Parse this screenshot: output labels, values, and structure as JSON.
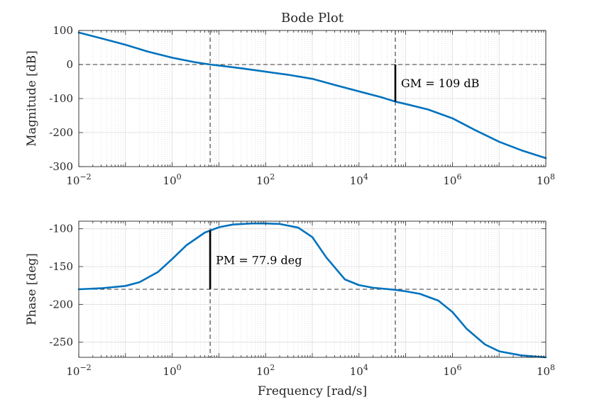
{
  "chart_data": {
    "type": "line",
    "title": "Bode Plot",
    "xlabel": "Frequency [rad/s]",
    "x_scale": "log",
    "xlim": [
      0.01,
      100000000
    ],
    "x_ticks": [
      {
        "value": 0.01,
        "base": "10",
        "exp": "−2"
      },
      {
        "value": 1,
        "base": "10",
        "exp": "0"
      },
      {
        "value": 100,
        "base": "10",
        "exp": "2"
      },
      {
        "value": 10000,
        "base": "10",
        "exp": "4"
      },
      {
        "value": 1000000,
        "base": "10",
        "exp": "6"
      },
      {
        "value": 100000000,
        "base": "10",
        "exp": "8"
      }
    ],
    "grid": true,
    "line_color": "#0072BD",
    "panels": [
      {
        "name": "magnitude",
        "ylabel": "Magnitude [dB]",
        "ylim": [
          -300,
          100
        ],
        "y_ticks": [
          {
            "value": 100,
            "label": "100"
          },
          {
            "value": 0,
            "label": "0"
          },
          {
            "value": -100,
            "label": "-100"
          },
          {
            "value": -200,
            "label": "-200"
          },
          {
            "value": -300,
            "label": "-300"
          }
        ],
        "series": [
          {
            "x": [
              0.01,
              0.03,
              0.1,
              0.3,
              1,
              3,
              6.5,
              10,
              30,
              100,
              300,
              1000,
              3000,
              10000,
              30000,
              60000,
              100000,
              300000,
              1000000,
              3000000,
              10000000,
              30000000,
              100000000
            ],
            "y": [
              94,
              77,
              58,
              38,
              20,
              7,
              0,
              -3,
              -11,
              -21,
              -30,
              -42,
              -60,
              -79,
              -96,
              -109,
              -116,
              -132,
              -158,
              -192,
              -227,
              -252,
              -275
            ]
          }
        ],
        "reference_lines": [
          {
            "axis": "y",
            "value": 0
          }
        ],
        "annotation": {
          "text": "GM = 109 dB",
          "x": 60000,
          "y_from": 0,
          "y_to": -109
        }
      },
      {
        "name": "phase",
        "ylabel": "Phase [deg]",
        "ylim": [
          -270,
          -90
        ],
        "y_ticks": [
          {
            "value": -100,
            "label": "-100"
          },
          {
            "value": -150,
            "label": "-150"
          },
          {
            "value": -200,
            "label": "-200"
          },
          {
            "value": -250,
            "label": "-250"
          }
        ],
        "series": [
          {
            "x": [
              0.01,
              0.03,
              0.1,
              0.2,
              0.5,
              1,
              2,
              5,
              10,
              20,
              50,
              100,
              200,
              500,
              1000,
              2000,
              5000,
              10000,
              20000,
              60000,
              100000,
              200000,
              500000,
              1000000,
              2000000,
              5000000,
              10000000,
              30000000,
              100000000
            ],
            "y": [
              -180,
              -178.7,
              -175.6,
              -170.6,
              -157,
              -140,
              -122,
              -105,
              -98,
              -94.4,
              -93,
              -93,
              -93.6,
              -98.5,
              -111,
              -138,
              -167,
              -174.5,
              -178,
              -180.8,
              -182.7,
              -186,
              -195,
              -210,
              -232,
              -253,
              -262,
              -267.5,
              -270
            ]
          }
        ],
        "reference_lines": [
          {
            "axis": "y",
            "value": -180
          }
        ],
        "annotation": {
          "text": "PM = 77.9 deg",
          "x": 6.5,
          "y_from": -180,
          "y_to": -102.1
        }
      }
    ],
    "crossover_lines": [
      6.5,
      60000
    ]
  }
}
